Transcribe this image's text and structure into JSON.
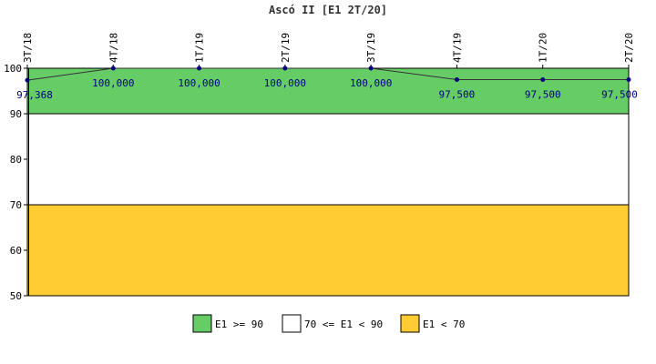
{
  "chart_data": {
    "type": "line",
    "title": "Ascó II [E1 2T/20]",
    "x": [
      "3T/18",
      "4T/18",
      "1T/19",
      "2T/19",
      "3T/19",
      "4T/19",
      "1T/20",
      "2T/20"
    ],
    "series": [
      {
        "values": [
          97.368,
          100.0,
          100.0,
          100.0,
          100.0,
          97.5,
          97.5,
          97.5
        ],
        "labels": [
          "97,368",
          "100,000",
          "100,000",
          "100,000",
          "100,000",
          "97,500",
          "97,500",
          "97,500"
        ],
        "color": "#000080"
      }
    ],
    "ylim": [
      50,
      100
    ],
    "yticks": [
      50,
      60,
      70,
      80,
      90,
      100
    ],
    "xlabel": "",
    "ylabel": "",
    "bands": [
      {
        "from": 90,
        "to": 100,
        "color": "#66cc66",
        "label": "E1 >= 90"
      },
      {
        "from": 70,
        "to": 90,
        "color": "#ffffff",
        "label": "70 <= E1 < 90"
      },
      {
        "from": 50,
        "to": 70,
        "color": "#ffcc33",
        "label": "E1 < 70"
      }
    ],
    "legend_position": "bottom",
    "grid": false
  }
}
